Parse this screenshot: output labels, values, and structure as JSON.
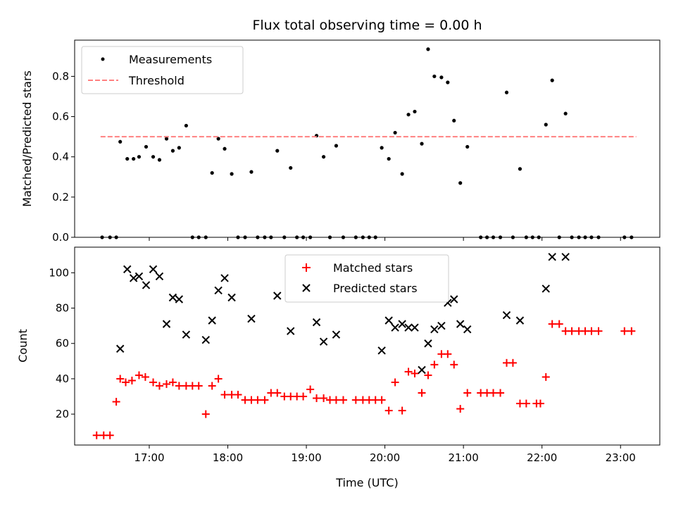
{
  "chart_data": [
    {
      "type": "scatter",
      "title": "Flux total observing time = 0.00 h",
      "ylabel": "Matched/Predicted stars",
      "xlabel": "",
      "ylim": [
        0,
        0.98
      ],
      "xlim": [
        16.05,
        23.5
      ],
      "grid": false,
      "legend_position": "top-left",
      "yticks": [
        "0.0",
        "0.2",
        "0.4",
        "0.6",
        "0.8"
      ],
      "series": [
        {
          "name": "Measurements",
          "marker": "dot",
          "color": "#000000",
          "x": [
            16.4,
            16.5,
            16.58,
            16.63,
            16.72,
            16.8,
            16.87,
            16.96,
            17.05,
            17.13,
            17.22,
            17.3,
            17.38,
            17.47,
            17.55,
            17.63,
            17.72,
            17.8,
            17.88,
            17.96,
            18.05,
            18.13,
            18.22,
            18.3,
            18.38,
            18.47,
            18.55,
            18.63,
            18.72,
            18.8,
            18.88,
            18.96,
            19.05,
            19.13,
            19.22,
            19.3,
            19.38,
            19.47,
            19.63,
            19.72,
            19.8,
            19.88,
            19.96,
            20.05,
            20.13,
            20.22,
            20.3,
            20.38,
            20.47,
            20.55,
            20.63,
            20.72,
            20.8,
            20.88,
            20.96,
            21.05,
            21.22,
            21.3,
            21.38,
            21.47,
            21.55,
            21.63,
            21.72,
            21.8,
            21.88,
            21.96,
            22.05,
            22.13,
            22.22,
            22.3,
            22.38,
            22.47,
            22.55,
            22.63,
            22.72,
            23.05,
            23.14
          ],
          "y": [
            0,
            0,
            0,
            0.475,
            0.39,
            0.39,
            0.4,
            0.45,
            0.4,
            0.385,
            0.49,
            0.43,
            0.445,
            0.555,
            0,
            0,
            0,
            0.32,
            0.49,
            0.44,
            0.315,
            0,
            0,
            0.325,
            0,
            0,
            0,
            0.43,
            0,
            0.345,
            0,
            0,
            0,
            0.505,
            0.4,
            0,
            0.455,
            0,
            0,
            0,
            0,
            0,
            0.445,
            0.39,
            0.52,
            0.315,
            0.61,
            0.625,
            0.465,
            0.935,
            0.8,
            0.795,
            0.77,
            0.58,
            0.27,
            0.45,
            0,
            0,
            0,
            0,
            0.72,
            0,
            0.34,
            0,
            0,
            0,
            0.56,
            0.78,
            0,
            0.615,
            0,
            0,
            0,
            0,
            0,
            0,
            0
          ]
        },
        {
          "name": "Threshold",
          "marker": "dashed-line",
          "color": "#ff8080",
          "x": [
            16.38,
            23.2
          ],
          "y": [
            0.5,
            0.5
          ]
        }
      ]
    },
    {
      "type": "scatter",
      "title": "",
      "ylabel": "Count",
      "xlabel": "Time (UTC)",
      "ylim": [
        2.5,
        114.5
      ],
      "xlim": [
        16.05,
        23.5
      ],
      "grid": false,
      "legend_position": "top-center",
      "yticks": [
        "20",
        "40",
        "60",
        "80",
        "100"
      ],
      "xticks": [
        "17:00",
        "18:00",
        "19:00",
        "20:00",
        "21:00",
        "22:00",
        "23:00"
      ],
      "xtick_hours": [
        17,
        18,
        19,
        20,
        21,
        22,
        23
      ],
      "series": [
        {
          "name": "Matched stars",
          "marker": "plus",
          "color": "#ff0000",
          "x": [
            16.33,
            16.42,
            16.5,
            16.58,
            16.63,
            16.7,
            16.78,
            16.87,
            16.95,
            17.05,
            17.13,
            17.22,
            17.3,
            17.38,
            17.47,
            17.55,
            17.63,
            17.72,
            17.8,
            17.88,
            17.96,
            18.05,
            18.13,
            18.22,
            18.3,
            18.38,
            18.47,
            18.55,
            18.63,
            18.72,
            18.8,
            18.88,
            18.96,
            19.05,
            19.13,
            19.22,
            19.3,
            19.38,
            19.47,
            19.63,
            19.72,
            19.8,
            19.88,
            19.96,
            20.05,
            20.13,
            20.22,
            20.3,
            20.38,
            20.47,
            20.55,
            20.63,
            20.72,
            20.8,
            20.88,
            20.96,
            21.05,
            21.22,
            21.3,
            21.38,
            21.47,
            21.55,
            21.63,
            21.72,
            21.8,
            21.93,
            21.98,
            22.05,
            22.13,
            22.22,
            22.3,
            22.38,
            22.47,
            22.55,
            22.63,
            22.72,
            23.05,
            23.14
          ],
          "y": [
            8,
            8,
            8,
            27,
            40,
            38,
            39,
            42,
            41,
            38,
            36,
            37,
            38,
            36,
            36,
            36,
            36,
            20,
            36,
            40,
            31,
            31,
            31,
            28,
            28,
            28,
            28,
            32,
            32,
            30,
            30,
            30,
            30,
            34,
            29,
            29,
            28,
            28,
            28,
            28,
            28,
            28,
            28,
            28,
            22,
            38,
            22,
            44,
            43,
            32,
            42,
            48,
            54,
            54,
            48,
            23,
            32,
            32,
            32,
            32,
            32,
            49,
            49,
            26,
            26,
            26,
            26,
            41,
            71,
            71,
            67,
            67,
            67,
            67,
            67,
            67,
            67,
            67
          ]
        },
        {
          "name": "Predicted stars",
          "marker": "x",
          "color": "#000000",
          "x": [
            16.63,
            16.72,
            16.8,
            16.87,
            16.96,
            17.05,
            17.13,
            17.22,
            17.3,
            17.38,
            17.47,
            17.72,
            17.8,
            17.88,
            17.96,
            18.05,
            18.3,
            18.63,
            18.8,
            19.13,
            19.22,
            19.38,
            19.96,
            20.05,
            20.13,
            20.22,
            20.3,
            20.38,
            20.47,
            20.55,
            20.63,
            20.72,
            20.8,
            20.88,
            20.96,
            21.05,
            21.55,
            21.72,
            22.05,
            22.13,
            22.3
          ],
          "y": [
            57,
            102,
            97,
            98,
            93,
            102,
            98,
            71,
            86,
            85,
            65,
            62,
            73,
            90,
            97,
            86,
            74,
            87,
            67,
            72,
            61,
            65,
            56,
            73,
            69,
            71,
            69,
            69,
            45,
            60,
            68,
            70,
            83,
            85,
            71,
            68,
            76,
            73,
            91,
            109,
            109
          ]
        }
      ]
    }
  ]
}
